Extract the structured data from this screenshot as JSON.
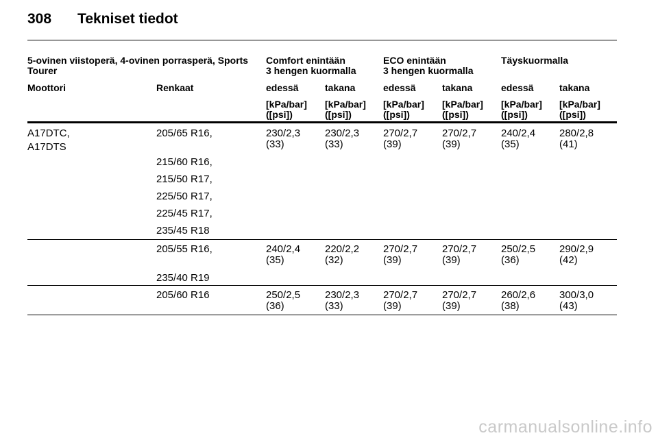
{
  "page": {
    "number": "308",
    "title": "Tekniset tiedot"
  },
  "table": {
    "group_header": "5-ovinen viistoperä, 4-ovinen porrasperä, Sports Tourer",
    "load_headers": [
      [
        "Comfort enintään",
        "3 hengen kuormalla"
      ],
      [
        "ECO enintään",
        "3 hengen kuormalla"
      ],
      [
        "Täyskuormalla"
      ]
    ],
    "col_moottori": "Moottori",
    "col_renkaat": "Renkaat",
    "col_axles": [
      "edessä",
      "takana",
      "edessä",
      "takana",
      "edessä",
      "takana"
    ],
    "unit": [
      "[kPa/bar]",
      "([psi])"
    ],
    "engines": [
      "A17DTC,",
      "A17DTS"
    ],
    "groups": [
      {
        "tires": [
          "205/65 R16,",
          "215/60 R16,",
          "215/50 R17,",
          "225/50 R17,",
          "225/45 R17,",
          "235/45 R18"
        ],
        "values": [
          [
            "230/2,3",
            "(33)"
          ],
          [
            "230/2,3",
            "(33)"
          ],
          [
            "270/2,7",
            "(39)"
          ],
          [
            "270/2,7",
            "(39)"
          ],
          [
            "240/2,4",
            "(35)"
          ],
          [
            "280/2,8",
            "(41)"
          ]
        ]
      },
      {
        "tires": [
          "205/55 R16,",
          "235/40 R19"
        ],
        "values": [
          [
            "240/2,4",
            "(35)"
          ],
          [
            "220/2,2",
            "(32)"
          ],
          [
            "270/2,7",
            "(39)"
          ],
          [
            "270/2,7",
            "(39)"
          ],
          [
            "250/2,5",
            "(36)"
          ],
          [
            "290/2,9",
            "(42)"
          ]
        ]
      },
      {
        "tires": [
          "205/60 R16"
        ],
        "values": [
          [
            "250/2,5",
            "(36)"
          ],
          [
            "230/2,3",
            "(33)"
          ],
          [
            "270/2,7",
            "(39)"
          ],
          [
            "270/2,7",
            "(39)"
          ],
          [
            "260/2,6",
            "(38)"
          ],
          [
            "300/3,0",
            "(43)"
          ]
        ]
      }
    ]
  },
  "footer": {
    "watermark": "carmanualsonline.info"
  }
}
